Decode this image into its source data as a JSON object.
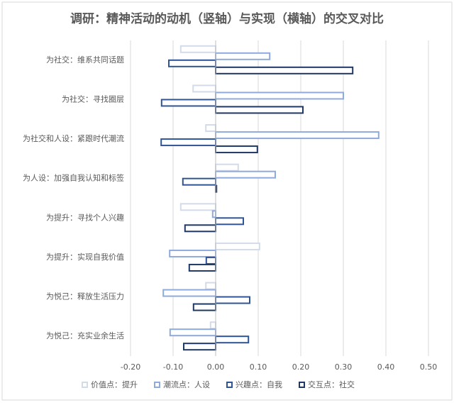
{
  "chart_data": {
    "type": "hbar",
    "title": "调研：精神活动的动机（竖轴）与实现（横轴）的交叉对比",
    "categories": [
      "为社交：维系共同话题",
      "为社交：寻找圈层",
      "为社交和人设：紧跟时代潮流",
      "为人设：加强自我认知和标签",
      "为提升：寻找个人兴趣",
      "为提升：实现自我价值",
      "为悦己：释放生活压力",
      "为悦己：充实业余生活"
    ],
    "series": [
      {
        "name": "价值点：提升",
        "color": "#d3dbe9",
        "values": [
          -0.082,
          -0.053,
          -0.023,
          0.053,
          -0.082,
          0.103,
          -0.023,
          -0.012
        ]
      },
      {
        "name": "潮流点：人设",
        "color": "#8faadc",
        "values": [
          0.127,
          0.3,
          0.383,
          0.14,
          -0.007,
          -0.108,
          -0.123,
          -0.107
        ]
      },
      {
        "name": "兴趣点：自我",
        "color": "#2f5597",
        "values": [
          -0.11,
          -0.127,
          -0.128,
          -0.077,
          0.065,
          -0.022,
          0.08,
          0.077
        ]
      },
      {
        "name": "交互点：社交",
        "color": "#1f3864",
        "values": [
          0.322,
          0.205,
          0.098,
          0.002,
          -0.072,
          -0.062,
          -0.052,
          -0.075
        ]
      }
    ],
    "xlim": [
      -0.2,
      0.5
    ],
    "xticks": [
      {
        "value": -0.2,
        "label": "-0.20"
      },
      {
        "value": -0.1,
        "label": "-0.10"
      },
      {
        "value": 0,
        "label": "0.00"
      },
      {
        "value": 0.1,
        "label": "0.10"
      },
      {
        "value": 0.2,
        "label": "0.20"
      },
      {
        "value": 0.3,
        "label": "0.30"
      },
      {
        "value": 0.4,
        "label": "0.40"
      },
      {
        "value": 0.5,
        "label": "0.50"
      }
    ],
    "grid": true,
    "legend": "bottom"
  }
}
